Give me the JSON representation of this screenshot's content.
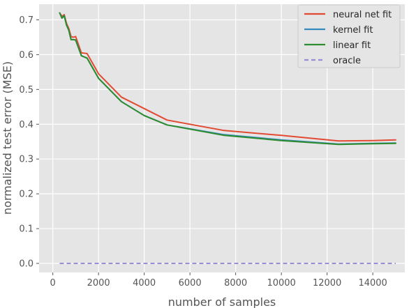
{
  "chart_data": {
    "type": "line",
    "xlabel": "number of samples",
    "ylabel": "normalized test error (MSE)",
    "xlim": [
      -600,
      15400
    ],
    "ylim": [
      -0.026,
      0.745
    ],
    "xticks": [
      0,
      2000,
      4000,
      6000,
      8000,
      10000,
      12000,
      14000
    ],
    "yticks": [
      0.0,
      0.1,
      0.2,
      0.3,
      0.4,
      0.5,
      0.6,
      0.7
    ],
    "xtick_labels": [
      "0",
      "2000",
      "4000",
      "6000",
      "8000",
      "10000",
      "12000",
      "14000"
    ],
    "ytick_labels": [
      "0.0",
      "0.1",
      "0.2",
      "0.3",
      "0.4",
      "0.5",
      "0.6",
      "0.7"
    ],
    "grid": true,
    "legend_position": "top-right",
    "x": [
      300,
      400,
      500,
      600,
      700,
      800,
      900,
      1000,
      1250,
      1500,
      2000,
      3000,
      4000,
      5000,
      7500,
      10000,
      12500,
      14000,
      15000
    ],
    "series": [
      {
        "name": "neural net fit",
        "color": "#E24A33",
        "dashed": false,
        "values": [
          0.72,
          0.71,
          0.715,
          0.69,
          0.675,
          0.652,
          0.65,
          0.652,
          0.605,
          0.603,
          0.545,
          0.478,
          0.445,
          0.412,
          0.382,
          0.368,
          0.352,
          0.353,
          0.355
        ]
      },
      {
        "name": "kernel fit",
        "color": "#348ABD",
        "dashed": false,
        "values": [
          0.72,
          0.705,
          0.712,
          0.685,
          0.67,
          0.643,
          0.643,
          0.642,
          0.597,
          0.59,
          0.532,
          0.465,
          0.425,
          0.398,
          0.37,
          0.355,
          0.343,
          0.345,
          0.346
        ]
      },
      {
        "name": "linear fit",
        "color": "#2E8B2E",
        "dashed": false,
        "values": [
          0.72,
          0.705,
          0.712,
          0.685,
          0.67,
          0.643,
          0.643,
          0.642,
          0.597,
          0.59,
          0.532,
          0.465,
          0.425,
          0.398,
          0.368,
          0.353,
          0.342,
          0.344,
          0.345
        ]
      },
      {
        "name": "oracle",
        "color": "#988ED5",
        "dashed": true,
        "values": [
          0.0,
          0.0,
          0.0,
          0.0,
          0.0,
          0.0,
          0.0,
          0.0,
          0.0,
          0.0,
          0.0,
          0.0,
          0.0,
          0.0,
          0.0,
          0.0,
          0.0,
          0.0,
          0.0
        ]
      }
    ]
  }
}
